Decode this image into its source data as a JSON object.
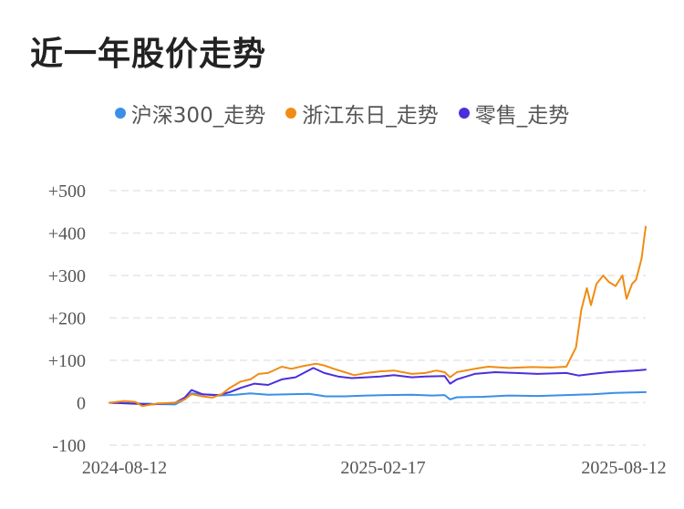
{
  "chart_data": {
    "type": "line",
    "title": "近一年股价走势",
    "legend_position": "top-center",
    "grid": true,
    "ylim": [
      -100,
      500
    ],
    "y_ticks": [
      {
        "value": 500,
        "label": "+500"
      },
      {
        "value": 400,
        "label": "+400"
      },
      {
        "value": 300,
        "label": "+300"
      },
      {
        "value": 200,
        "label": "+200"
      },
      {
        "value": 100,
        "label": "+100"
      },
      {
        "value": 0,
        "label": "0"
      },
      {
        "value": -100,
        "label": "-100"
      }
    ],
    "x_range": [
      "2024-08-01",
      "2025-08-28"
    ],
    "x_ticks": [
      "2024-08-12",
      "2025-02-17",
      "2025-08-12"
    ],
    "series": [
      {
        "name": "沪深300_走势",
        "color": "#3b8fe6",
        "points": [
          [
            "2024-08-01",
            0
          ],
          [
            "2024-08-15",
            -1
          ],
          [
            "2024-09-01",
            -3
          ],
          [
            "2024-09-18",
            -4
          ],
          [
            "2024-09-25",
            8
          ],
          [
            "2024-09-30",
            22
          ],
          [
            "2024-10-08",
            20
          ],
          [
            "2024-10-20",
            17
          ],
          [
            "2024-11-01",
            19
          ],
          [
            "2024-11-12",
            22
          ],
          [
            "2024-11-25",
            19
          ],
          [
            "2024-12-10",
            20
          ],
          [
            "2024-12-25",
            21
          ],
          [
            "2025-01-06",
            15
          ],
          [
            "2025-01-20",
            15
          ],
          [
            "2025-02-05",
            17
          ],
          [
            "2025-02-20",
            18
          ],
          [
            "2025-03-10",
            19
          ],
          [
            "2025-03-25",
            17
          ],
          [
            "2025-04-03",
            18
          ],
          [
            "2025-04-07",
            8
          ],
          [
            "2025-04-12",
            13
          ],
          [
            "2025-05-01",
            14
          ],
          [
            "2025-05-20",
            17
          ],
          [
            "2025-06-10",
            16
          ],
          [
            "2025-07-01",
            18
          ],
          [
            "2025-07-20",
            20
          ],
          [
            "2025-08-05",
            23
          ],
          [
            "2025-08-28",
            25
          ]
        ]
      },
      {
        "name": "浙江东日_走势",
        "color": "#f08c14",
        "points": [
          [
            "2024-08-01",
            0
          ],
          [
            "2024-08-12",
            4
          ],
          [
            "2024-08-20",
            2
          ],
          [
            "2024-08-25",
            -8
          ],
          [
            "2024-09-05",
            -2
          ],
          [
            "2024-09-18",
            0
          ],
          [
            "2024-09-25",
            8
          ],
          [
            "2024-09-30",
            20
          ],
          [
            "2024-10-08",
            15
          ],
          [
            "2024-10-15",
            12
          ],
          [
            "2024-10-22",
            20
          ],
          [
            "2024-10-28",
            35
          ],
          [
            "2024-11-05",
            50
          ],
          [
            "2024-11-12",
            55
          ],
          [
            "2024-11-18",
            68
          ],
          [
            "2024-11-25",
            70
          ],
          [
            "2024-12-05",
            85
          ],
          [
            "2024-12-12",
            80
          ],
          [
            "2024-12-20",
            86
          ],
          [
            "2024-12-30",
            92
          ],
          [
            "2025-01-05",
            88
          ],
          [
            "2025-01-12",
            80
          ],
          [
            "2025-01-20",
            72
          ],
          [
            "2025-01-27",
            65
          ],
          [
            "2025-02-05",
            70
          ],
          [
            "2025-02-15",
            74
          ],
          [
            "2025-02-25",
            76
          ],
          [
            "2025-03-10",
            68
          ],
          [
            "2025-03-20",
            70
          ],
          [
            "2025-03-28",
            76
          ],
          [
            "2025-04-03",
            72
          ],
          [
            "2025-04-07",
            60
          ],
          [
            "2025-04-12",
            72
          ],
          [
            "2025-04-25",
            80
          ],
          [
            "2025-05-05",
            85
          ],
          [
            "2025-05-20",
            82
          ],
          [
            "2025-06-05",
            84
          ],
          [
            "2025-06-20",
            83
          ],
          [
            "2025-07-01",
            85
          ],
          [
            "2025-07-08",
            130
          ],
          [
            "2025-07-12",
            220
          ],
          [
            "2025-07-16",
            270
          ],
          [
            "2025-07-19",
            230
          ],
          [
            "2025-07-23",
            280
          ],
          [
            "2025-07-28",
            300
          ],
          [
            "2025-08-01",
            285
          ],
          [
            "2025-08-06",
            275
          ],
          [
            "2025-08-11",
            300
          ],
          [
            "2025-08-14",
            245
          ],
          [
            "2025-08-18",
            280
          ],
          [
            "2025-08-21",
            290
          ],
          [
            "2025-08-25",
            340
          ],
          [
            "2025-08-28",
            415
          ]
        ]
      },
      {
        "name": "零售_走势",
        "color": "#4a2fdc",
        "points": [
          [
            "2024-08-01",
            0
          ],
          [
            "2024-08-15",
            -2
          ],
          [
            "2024-09-01",
            -4
          ],
          [
            "2024-09-18",
            0
          ],
          [
            "2024-09-25",
            12
          ],
          [
            "2024-09-30",
            30
          ],
          [
            "2024-10-08",
            20
          ],
          [
            "2024-10-20",
            18
          ],
          [
            "2024-10-28",
            25
          ],
          [
            "2024-11-05",
            35
          ],
          [
            "2024-11-15",
            45
          ],
          [
            "2024-11-25",
            42
          ],
          [
            "2024-12-05",
            55
          ],
          [
            "2024-12-15",
            60
          ],
          [
            "2024-12-28",
            82
          ],
          [
            "2025-01-05",
            70
          ],
          [
            "2025-01-15",
            62
          ],
          [
            "2025-01-25",
            58
          ],
          [
            "2025-02-05",
            60
          ],
          [
            "2025-02-15",
            62
          ],
          [
            "2025-02-25",
            65
          ],
          [
            "2025-03-10",
            60
          ],
          [
            "2025-03-20",
            62
          ],
          [
            "2025-04-03",
            63
          ],
          [
            "2025-04-07",
            45
          ],
          [
            "2025-04-12",
            55
          ],
          [
            "2025-04-25",
            68
          ],
          [
            "2025-05-10",
            72
          ],
          [
            "2025-05-25",
            70
          ],
          [
            "2025-06-10",
            68
          ],
          [
            "2025-07-01",
            70
          ],
          [
            "2025-07-10",
            64
          ],
          [
            "2025-07-20",
            68
          ],
          [
            "2025-08-01",
            72
          ],
          [
            "2025-08-10",
            74
          ],
          [
            "2025-08-20",
            76
          ],
          [
            "2025-08-28",
            78
          ]
        ]
      }
    ]
  }
}
